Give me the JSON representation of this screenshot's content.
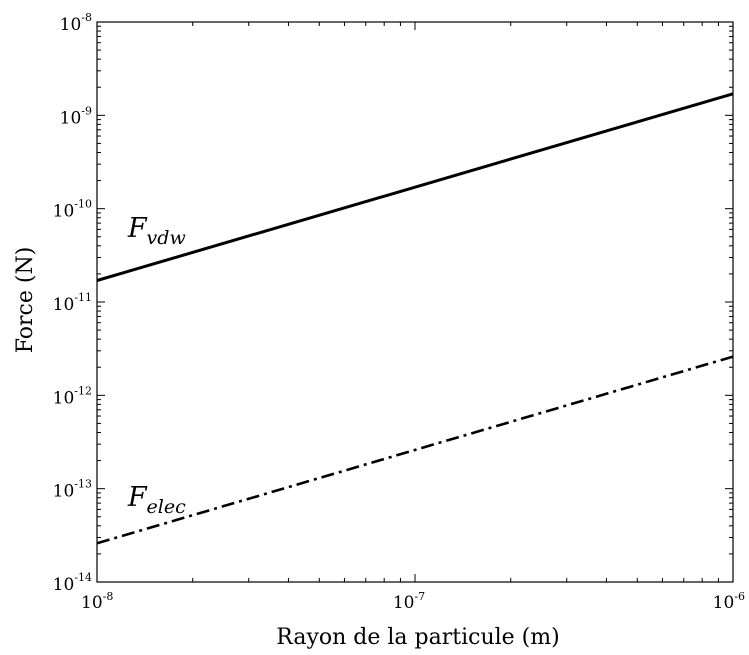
{
  "chart_data": {
    "type": "line",
    "xlabel": "Rayon de la particule (m)",
    "ylabel": "Force (N)",
    "x_scale": "log",
    "y_scale": "log",
    "xlim": [
      1e-08,
      1e-06
    ],
    "ylim": [
      1e-14,
      1e-08
    ],
    "grid": false,
    "x_ticks": [
      {
        "base": "10",
        "exp": "-8",
        "value": 1e-08
      },
      {
        "base": "10",
        "exp": "-7",
        "value": 1e-07
      },
      {
        "base": "10",
        "exp": "-6",
        "value": 1e-06
      }
    ],
    "y_ticks": [
      {
        "base": "10",
        "exp": "-14",
        "value": 1e-14
      },
      {
        "base": "10",
        "exp": "-13",
        "value": 1e-13
      },
      {
        "base": "10",
        "exp": "-12",
        "value": 1e-12
      },
      {
        "base": "10",
        "exp": "-11",
        "value": 1e-11
      },
      {
        "base": "10",
        "exp": "-10",
        "value": 1e-10
      },
      {
        "base": "10",
        "exp": "-9",
        "value": 1e-09
      },
      {
        "base": "10",
        "exp": "-8",
        "value": 1e-08
      }
    ],
    "series": [
      {
        "label_main": "F",
        "label_sub": "vdw",
        "style": "solid",
        "color": "#000000",
        "x": [
          1e-08,
          1e-06
        ],
        "y": [
          1.7e-11,
          1.7e-09
        ],
        "label_at": {
          "x": 1.25e-08,
          "y": 5e-11
        }
      },
      {
        "label_main": "F",
        "label_sub": "elec",
        "style": "dashdot",
        "color": "#000000",
        "x": [
          1e-08,
          1e-06
        ],
        "y": [
          2.6e-14,
          2.6e-12
        ],
        "label_at": {
          "x": 1.25e-08,
          "y": 6.5e-14
        }
      }
    ]
  }
}
